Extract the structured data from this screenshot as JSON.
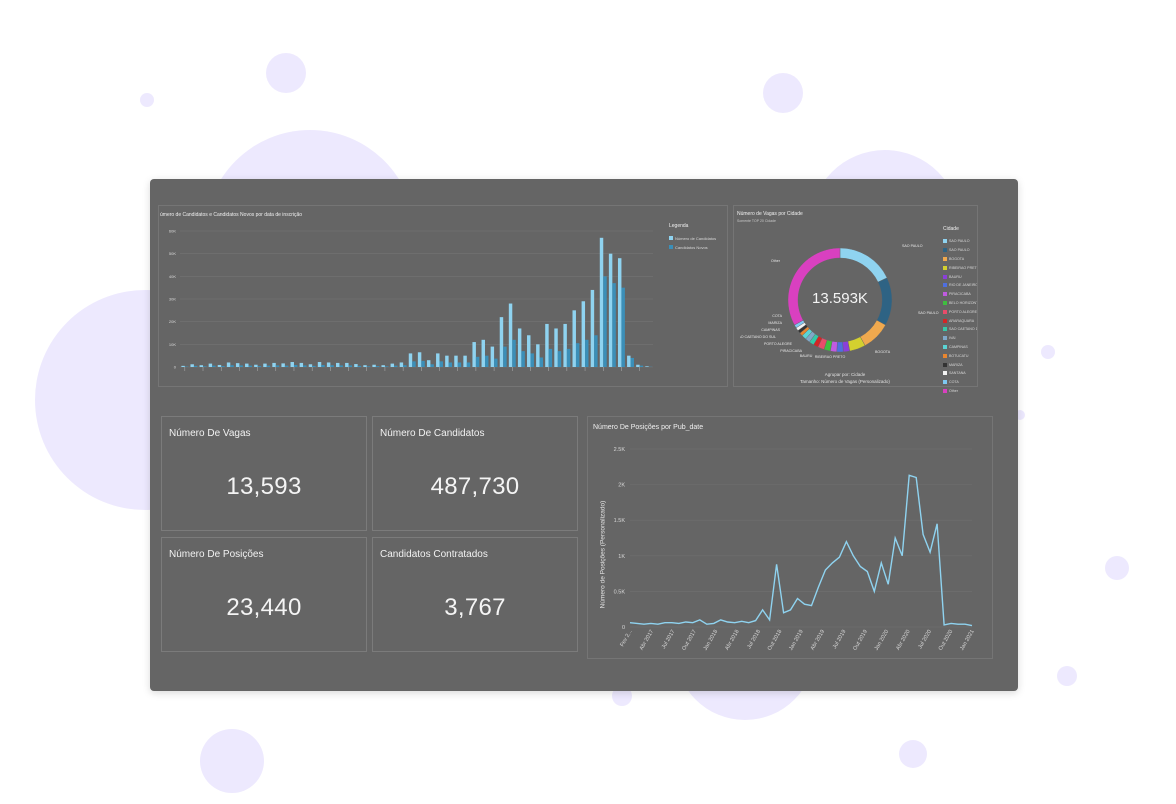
{
  "colors": {
    "page_bg": "#ffffff",
    "bubble": "#ede9fe",
    "dashboard_bg": "#656565",
    "bar_light": "#8fd3f0",
    "bar_dark": "#3b8fb8",
    "line": "#8fd3f0"
  },
  "bar_chart": {
    "title": "úmero de Candidatos e Candidatos Novos por data de inscrição",
    "legend_title": "Legenda",
    "yticks": [
      "60K",
      "50K",
      "40K",
      "30K",
      "20K",
      "10K",
      "0"
    ]
  },
  "donut_chart": {
    "title": "Número de Vagas por Cidade",
    "subtitle": "Somente TOP 20 Cidade",
    "center_value": "13.593K",
    "group_by": "Agrupar por: Cidade",
    "size_by": "Tamanho: Número de Vagas (Personalizado)",
    "legend_title": "Cidade",
    "left_labels": [
      "Other",
      "COTA",
      "MARIZA",
      "CAMPINAS",
      "SAO CAETANO DO SUL",
      "PORTO ALEGRE",
      "PIRACICABA",
      "BAURU",
      "RIBEIRAO PRETO",
      "BOGOTA"
    ],
    "right_labels": [
      "SAO PAULO",
      "SAO PAULO"
    ]
  },
  "kpis": [
    {
      "title": "Número De Vagas",
      "value": "13,593"
    },
    {
      "title": "Número De Candidatos",
      "value": "487,730"
    },
    {
      "title": "Número De Posições",
      "value": "23,440"
    },
    {
      "title": "Candidatos Contratados",
      "value": "3,767"
    }
  ],
  "line_chart": {
    "title": "Número De Posições por Pub_date",
    "ylabel": "Número de Posições (Personalizado)",
    "yticks": [
      "2.5K",
      "2K",
      "1.5K",
      "1K",
      "0.5K",
      "0"
    ],
    "xticks": [
      "Fev 2...",
      "Abr 2017",
      "Jul 2017",
      "Out 2017",
      "Jan 2018",
      "Abr 2018",
      "Jul 2018",
      "Out 2018",
      "Jan 2019",
      "Abr 2019",
      "Jul 2019",
      "Out 2019",
      "Jan 2020",
      "Abr 2020",
      "Jul 2020",
      "Out 2020",
      "Jan 2021"
    ]
  },
  "chart_data": [
    {
      "type": "bar",
      "title": "úmero de Candidatos e Candidatos Novos por data de inscrição",
      "ylim": [
        0,
        60000
      ],
      "legend": "right",
      "series": [
        {
          "name": "Número de Candidatos",
          "color": "#8fd3f0",
          "values": [
            500,
            1200,
            800,
            1500,
            900,
            2000,
            1700,
            1500,
            1000,
            1500,
            1800,
            1600,
            2200,
            1800,
            1200,
            2200,
            2000,
            1800,
            1800,
            1300,
            800,
            1000,
            800,
            1500,
            2000,
            6000,
            6500,
            3000,
            6000,
            5000,
            5000,
            5000,
            11000,
            12000,
            9000,
            22000,
            28000,
            17000,
            14000,
            10000,
            19000,
            17000,
            19000,
            25000,
            29000,
            34000,
            57000,
            50000,
            48000,
            5000,
            1000,
            300
          ]
        },
        {
          "name": "Candidatos Novos",
          "color": "#3b8fb8",
          "values": [
            200,
            500,
            300,
            600,
            400,
            800,
            700,
            600,
            400,
            600,
            700,
            600,
            900,
            700,
            500,
            900,
            800,
            700,
            700,
            500,
            300,
            400,
            300,
            600,
            800,
            2500,
            2700,
            1200,
            2500,
            2000,
            2000,
            2000,
            4500,
            5000,
            3700,
            9000,
            12000,
            7000,
            6000,
            4200,
            8000,
            7000,
            8000,
            10500,
            12000,
            14000,
            40000,
            37000,
            35000,
            4000,
            600,
            100
          ]
        }
      ]
    },
    {
      "type": "pie",
      "title": "Número de Vagas por Cidade",
      "total_label": "13.593K",
      "legend": "right",
      "slices": [
        {
          "label": "SAO PAULO",
          "value": 18,
          "color": "#8fd3f0"
        },
        {
          "label": "SAO PAULO",
          "value": 15,
          "color": "#2e6384"
        },
        {
          "label": "BOGOTA",
          "value": 9,
          "color": "#f0a94e"
        },
        {
          "label": "RIBEIRAO PRETO",
          "value": 5,
          "color": "#d3d02f"
        },
        {
          "label": "BAURU",
          "value": 2,
          "color": "#8b3fd9"
        },
        {
          "label": "RIO DE JANEIRO",
          "value": 2,
          "color": "#4e6fe0"
        },
        {
          "label": "PIRACICABA",
          "value": 2,
          "color": "#c05be0"
        },
        {
          "label": "BELO HORIZONTE",
          "value": 2,
          "color": "#3fbf3f"
        },
        {
          "label": "PORTO ALEGRE",
          "value": 2,
          "color": "#e84c6a"
        },
        {
          "label": "ARARAQUARA",
          "value": 1.5,
          "color": "#d42525"
        },
        {
          "label": "SAO CAETANO DO SUL",
          "value": 1.5,
          "color": "#35c9a8"
        },
        {
          "label": "IVAI",
          "value": 1.5,
          "color": "#7fa8c9"
        },
        {
          "label": "CAMPINAS",
          "value": 1.5,
          "color": "#5ad4d4"
        },
        {
          "label": "BOTUCATU",
          "value": 1,
          "color": "#e8862f"
        },
        {
          "label": "MARIZA",
          "value": 1,
          "color": "#333333"
        },
        {
          "label": "SANTANA",
          "value": 1,
          "color": "#f2f2f2"
        },
        {
          "label": "COTA",
          "value": 1,
          "color": "#7ec8f2"
        },
        {
          "label": "Other",
          "value": 33,
          "color": "#d940c0"
        }
      ]
    },
    {
      "type": "line",
      "title": "Número De Posições por Pub_date",
      "ylabel": "Número de Posições (Personalizado)",
      "ylim": [
        0,
        2500
      ],
      "series": [
        {
          "name": "",
          "values": [
            60,
            50,
            40,
            50,
            40,
            60,
            60,
            50,
            70,
            60,
            100,
            40,
            50,
            100,
            70,
            60,
            80,
            60,
            90,
            240,
            100,
            880,
            200,
            240,
            400,
            320,
            300,
            560,
            800,
            900,
            980,
            1200,
            1000,
            850,
            780,
            500,
            900,
            600,
            1250,
            1000,
            2130,
            2100,
            1300,
            1050,
            1450,
            30,
            50,
            40,
            40,
            20
          ]
        }
      ]
    }
  ]
}
